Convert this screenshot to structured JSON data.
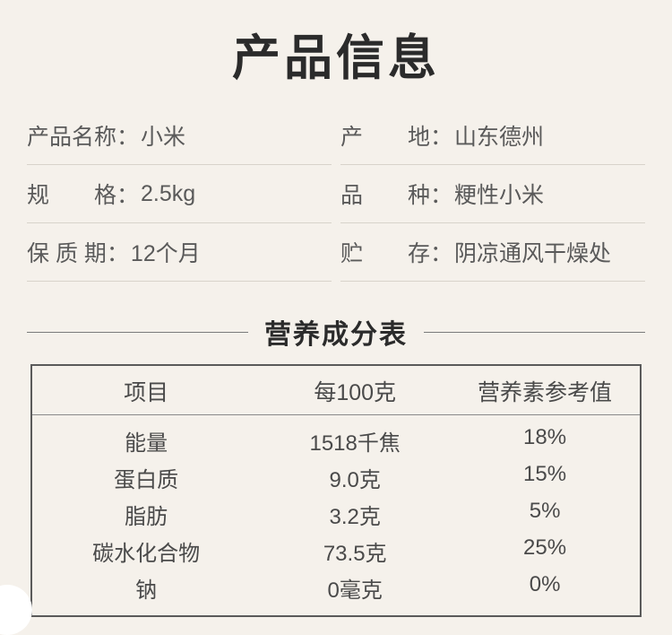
{
  "title": "产品信息",
  "info": {
    "rows": [
      {
        "label": "产品名称",
        "value": "小米"
      },
      {
        "label": "产　　地",
        "value": "山东德州"
      },
      {
        "label": "规　　格",
        "value": "2.5kg"
      },
      {
        "label": "品　　种",
        "value": "粳性小米"
      },
      {
        "label": "保 质 期",
        "value": "12个月"
      },
      {
        "label": "贮　　存",
        "value": "阴凉通风干燥处"
      }
    ]
  },
  "nutrition": {
    "section_title": "营养成分表",
    "headers": {
      "c0": "项目",
      "c1": "每100克",
      "c2": "营养素参考值"
    },
    "rows": [
      {
        "c0": "能量",
        "c1": "1518千焦",
        "c2": "18%"
      },
      {
        "c0": "蛋白质",
        "c1": "9.0克",
        "c2": "15%"
      },
      {
        "c0": "脂肪",
        "c1": "3.2克",
        "c2": "5%"
      },
      {
        "c0": "碳水化合物",
        "c1": "73.5克",
        "c2": "25%"
      },
      {
        "c0": "钠",
        "c1": "0毫克",
        "c2": "0%"
      }
    ]
  },
  "style": {
    "bg": "#f5f1eb",
    "text": "#4a4a4a",
    "title_color": "#2b2b2b",
    "divider": "#d8d3cb",
    "table_border": "#5a5a5a"
  }
}
